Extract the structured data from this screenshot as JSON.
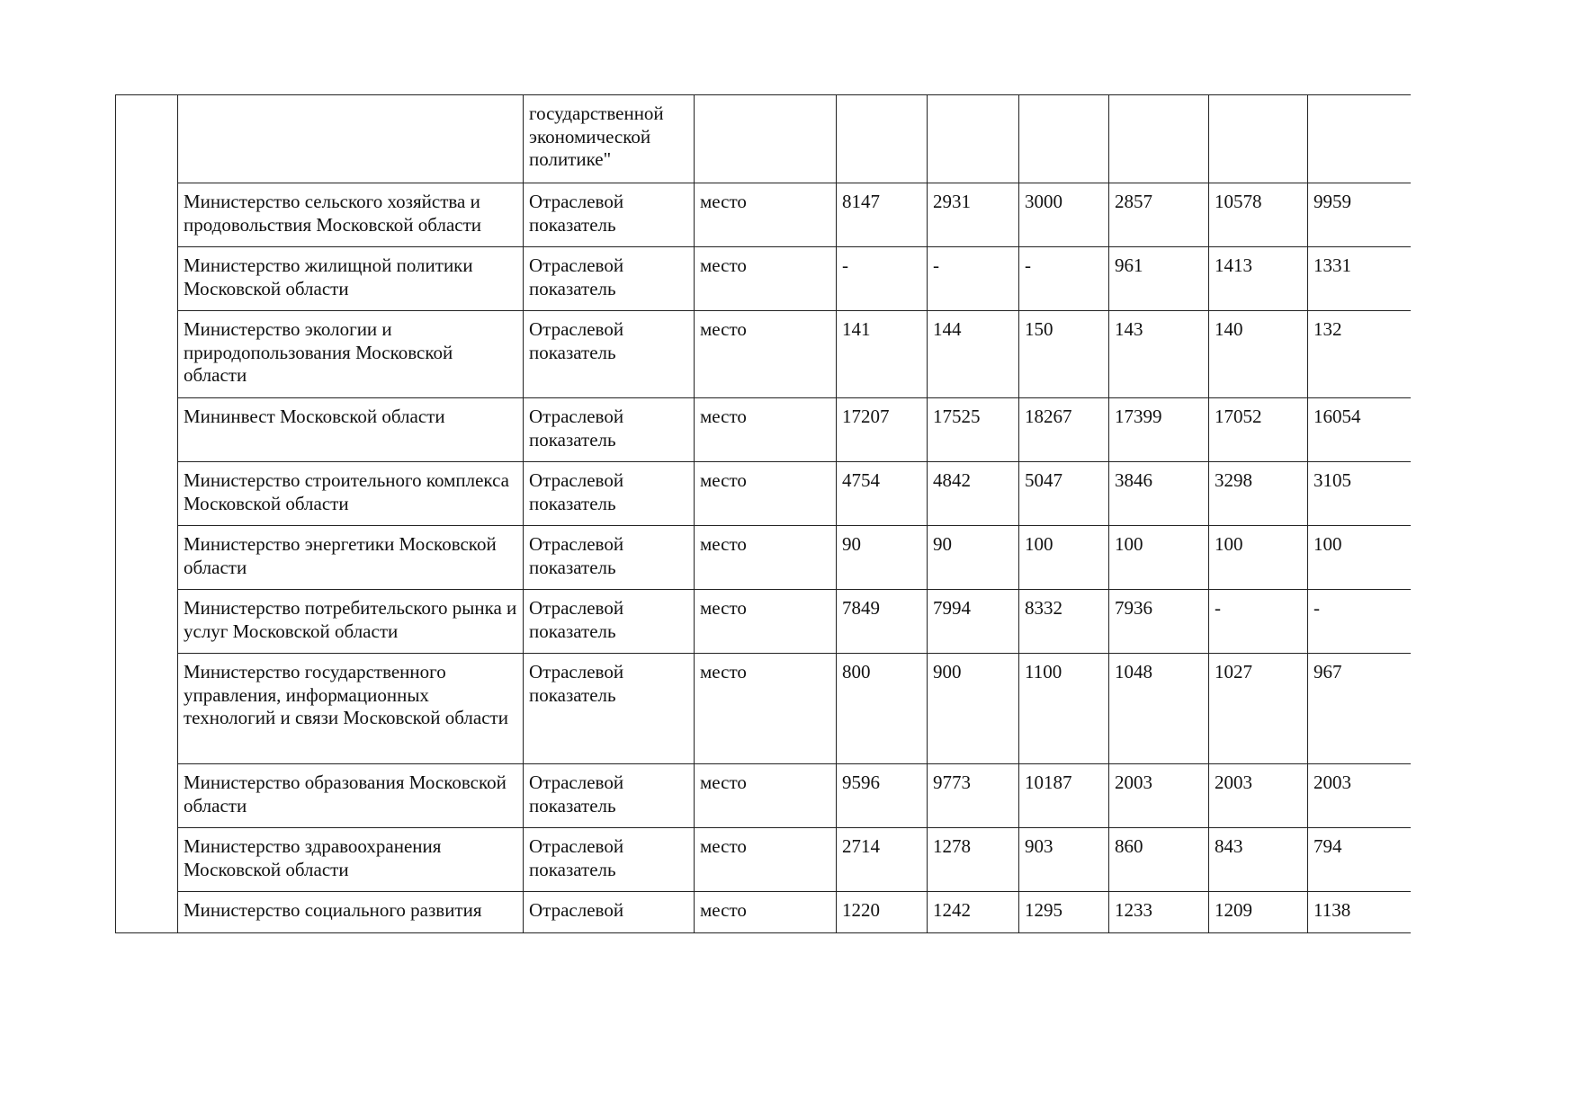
{
  "header_row": {
    "indicator_tail": "государственной экономической политике\""
  },
  "rows": [
    {
      "org": "Министерство сельского хозяйства и продовольствия Московской области",
      "type": "Отраслевой показатель",
      "unit": "место",
      "values": [
        "8147",
        "2931",
        "3000",
        "2857",
        "10578",
        "9959"
      ]
    },
    {
      "org": "Министерство жилищной политики Московской области",
      "type": "Отраслевой показатель",
      "unit": "место",
      "values": [
        "-",
        "-",
        "-",
        "961",
        "1413",
        "1331"
      ]
    },
    {
      "org": "Министерство экологии и природопользования Московской области",
      "type": "Отраслевой показатель",
      "unit": "место",
      "values": [
        "141",
        "144",
        "150",
        "143",
        "140",
        "132"
      ]
    },
    {
      "org": "Мининвест Московской области",
      "type": "Отраслевой показатель",
      "unit": "место",
      "values": [
        "17207",
        "17525",
        "18267",
        "17399",
        "17052",
        "16054"
      ]
    },
    {
      "org": "Министерство строительного комплекса Московской области",
      "type": "Отраслевой показатель",
      "unit": "место",
      "values": [
        "4754",
        "4842",
        "5047",
        "3846",
        "3298",
        "3105"
      ]
    },
    {
      "org": "Министерство энергетики Московской области",
      "type": "Отраслевой показатель",
      "unit": "место",
      "values": [
        "90",
        "90",
        "100",
        "100",
        "100",
        "100"
      ]
    },
    {
      "org": "Министерство потребительского рынка и услуг Московской области",
      "type": "Отраслевой показатель",
      "unit": "место",
      "values": [
        "7849",
        "7994",
        "8332",
        "7936",
        "-",
        "-"
      ]
    },
    {
      "org": "Министерство государственного управления, информационных технологий и связи Московской области",
      "type": "Отраслевой показатель",
      "unit": "место",
      "values": [
        "800",
        "900",
        "1100",
        "1048",
        "1027",
        "967"
      ]
    },
    {
      "org": "Министерство образования Московской области",
      "type": "Отраслевой показатель",
      "unit": "место",
      "values": [
        "9596",
        "9773",
        "10187",
        "2003",
        "2003",
        "2003"
      ]
    },
    {
      "org": "Министерство здравоохранения Московской области",
      "type": "Отраслевой показатель",
      "unit": "место",
      "values": [
        "2714",
        "1278",
        "903",
        "860",
        "843",
        "794"
      ]
    },
    {
      "org": "Министерство социального развития",
      "type": "Отраслевой",
      "unit": "место",
      "values": [
        "1220",
        "1242",
        "1295",
        "1233",
        "1209",
        "1138"
      ]
    }
  ]
}
